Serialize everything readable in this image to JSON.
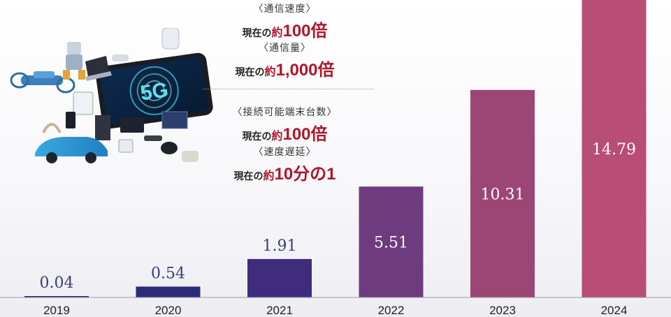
{
  "chart_data": {
    "type": "bar",
    "categories": [
      "2019",
      "2020",
      "2021",
      "2022",
      "2023",
      "2024"
    ],
    "values": [
      0.04,
      0.54,
      1.91,
      5.51,
      10.31,
      14.79
    ],
    "value_labels": [
      "0.04",
      "0.54",
      "1.91",
      "5.51",
      "10.31",
      "14.79"
    ],
    "bar_colors": [
      "#2a2f73",
      "#2c2c7a",
      "#3f2c7d",
      "#6e3c7e",
      "#9c4675",
      "#b84d76"
    ],
    "title": "",
    "xlabel": "",
    "ylabel": "",
    "ylim": [
      0,
      15
    ],
    "grid": false
  },
  "annotations": {
    "speed": {
      "label": "〈通信速度〉",
      "prefix": "現在の",
      "approx": "約",
      "value": "100倍"
    },
    "volume": {
      "label": "〈通信量〉",
      "prefix": "現在の",
      "approx": "約",
      "value": "1,000倍"
    },
    "devices": {
      "label": "〈接続可能端末台数〉",
      "prefix": "現在の",
      "approx": "約",
      "value": "100倍"
    },
    "latency": {
      "label": "〈速度遅延〉",
      "prefix": "現在の",
      "approx": "約",
      "value": "10分の1"
    }
  },
  "illustration": {
    "icon": "5g-devices-illustration",
    "logo_text": "5G"
  }
}
